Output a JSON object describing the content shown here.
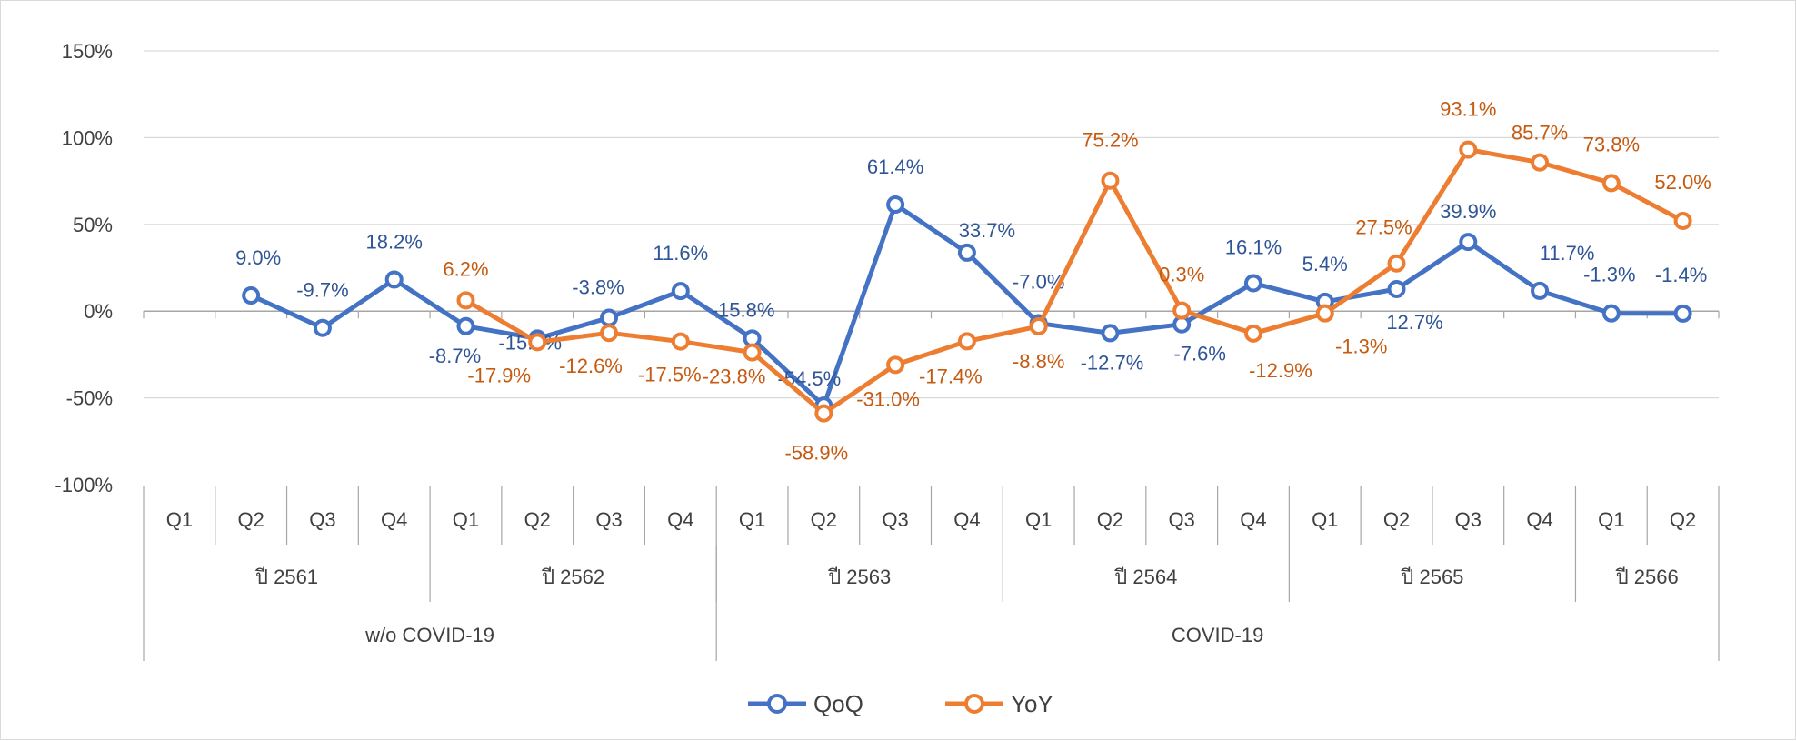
{
  "chart_data": {
    "type": "line",
    "categories": [
      "Q1",
      "Q2",
      "Q3",
      "Q4",
      "Q1",
      "Q2",
      "Q3",
      "Q4",
      "Q1",
      "Q2",
      "Q3",
      "Q4",
      "Q1",
      "Q2",
      "Q3",
      "Q4",
      "Q1",
      "Q2",
      "Q3",
      "Q4",
      "Q1",
      "Q2"
    ],
    "year_groups": [
      {
        "label": "ปี 2561",
        "count": 4
      },
      {
        "label": "ปี 2562",
        "count": 4
      },
      {
        "label": "ปี 2563",
        "count": 4
      },
      {
        "label": "ปี 2564",
        "count": 4
      },
      {
        "label": "ปี 2565",
        "count": 4
      },
      {
        "label": "ปี 2566",
        "count": 2
      }
    ],
    "period_groups": [
      {
        "label": "w/o COVID-19",
        "count": 8
      },
      {
        "label": "COVID-19",
        "count": 14
      }
    ],
    "yticks": [
      "150%",
      "100%",
      "50%",
      "0%",
      "-50%",
      "-100%"
    ],
    "ylim": [
      -100,
      150
    ],
    "grid": true,
    "legend_position": "bottom",
    "series": [
      {
        "name": "QoQ",
        "color": "#4472C4",
        "values": [
          null,
          9.0,
          -9.7,
          18.2,
          -8.7,
          -15.8,
          -3.8,
          11.6,
          -15.8,
          -54.5,
          61.4,
          33.7,
          -7.0,
          -12.7,
          -7.6,
          16.1,
          5.4,
          12.7,
          39.9,
          11.7,
          -1.3,
          -1.4
        ],
        "labels": [
          null,
          "9.0%",
          "-9.7%",
          "18.2%",
          "-8.7%",
          "-15.8%",
          "-3.8%",
          "11.6%",
          "-15.8%",
          "-54.5%",
          "61.4%",
          "33.7%",
          "-7.0%",
          "-12.7%",
          "-7.6%",
          "16.1%",
          "5.4%",
          "12.7%",
          "39.9%",
          "11.7%",
          "-1.3%",
          "-1.4%"
        ]
      },
      {
        "name": "YoY",
        "color": "#ED7D31",
        "values": [
          null,
          null,
          null,
          null,
          6.2,
          -17.9,
          -12.6,
          -17.5,
          -23.8,
          -58.9,
          -31.0,
          -17.4,
          -8.8,
          75.2,
          0.3,
          -12.9,
          -1.3,
          27.5,
          93.1,
          85.7,
          73.8,
          52.0
        ],
        "labels": [
          null,
          null,
          null,
          null,
          "6.2%",
          "-17.9%",
          "-12.6%",
          "-17.5%",
          "-23.8%",
          "-58.9%",
          "-31.0%",
          "-17.4%",
          "-8.8%",
          "75.2%",
          "0.3%",
          "-12.9%",
          "-1.3%",
          "27.5%",
          "93.1%",
          "85.7%",
          "73.8%",
          "52.0%"
        ]
      }
    ]
  }
}
